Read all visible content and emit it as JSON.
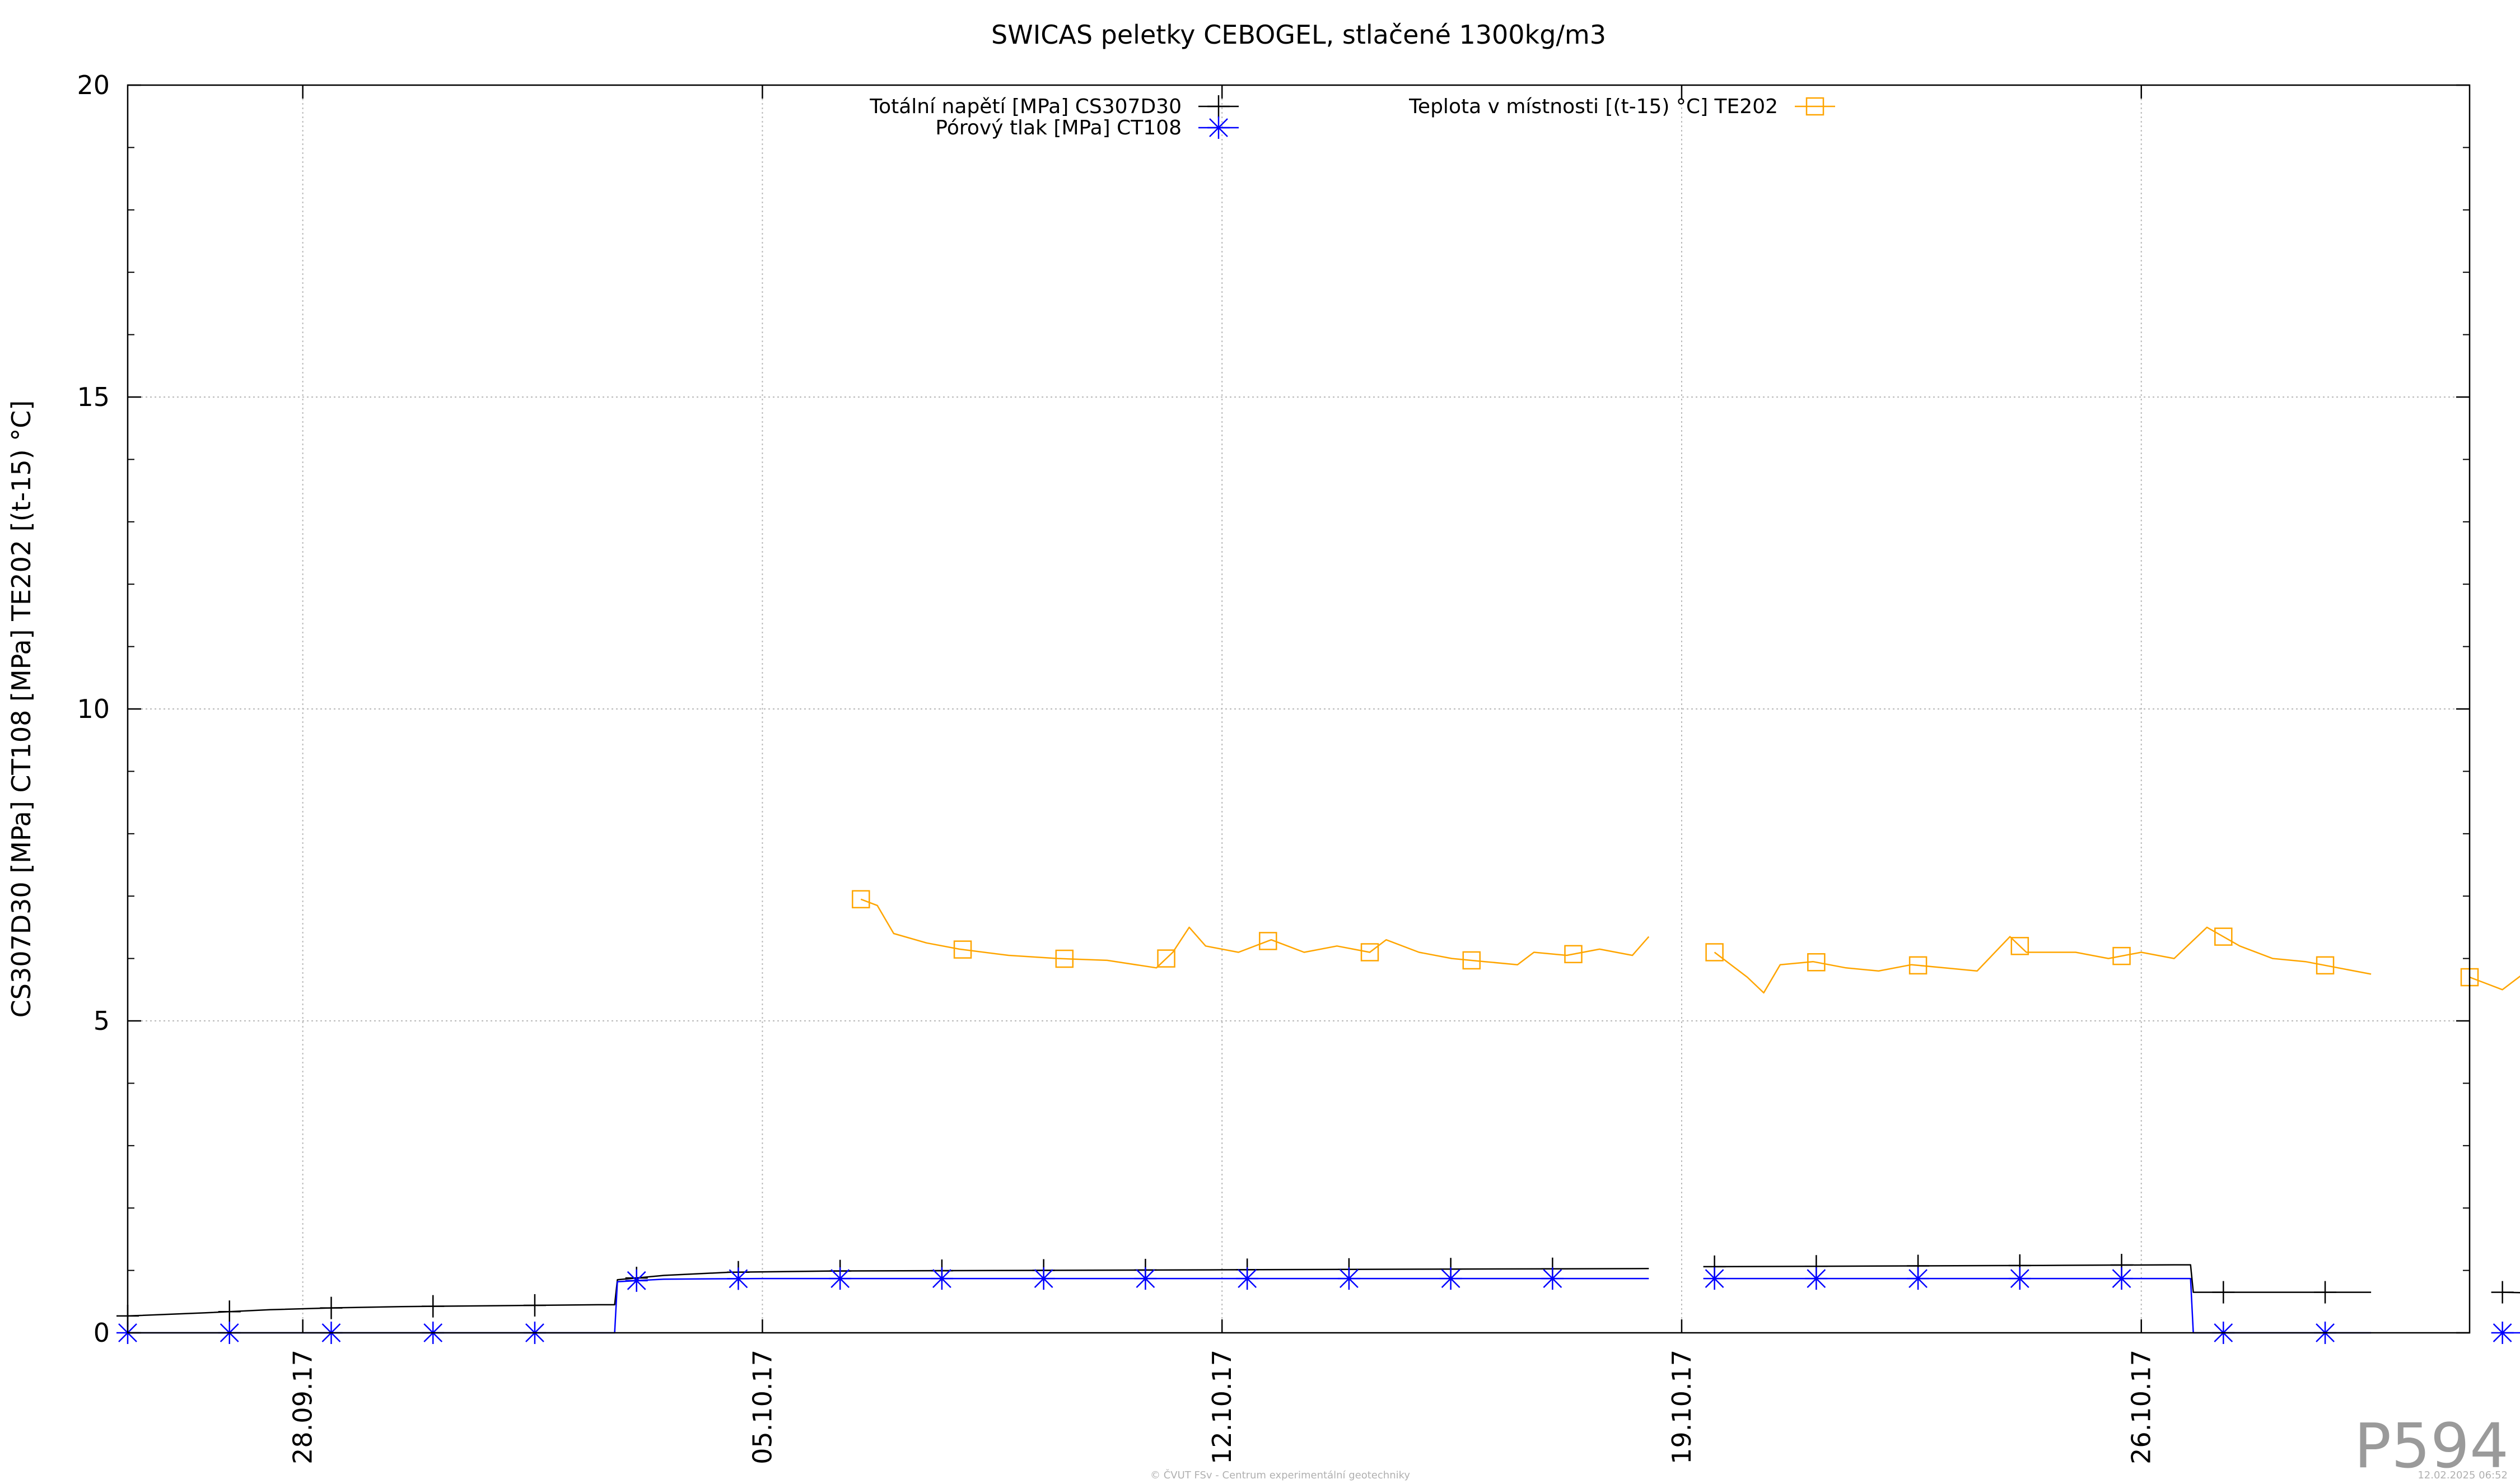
{
  "chart_data": {
    "type": "line",
    "title": "SWICAS peletky CEBOGEL, stlačené 1300kg/m3",
    "xlabel": "",
    "ylabel": "CS307D30 [MPa] CT108 [MPa] TE202 [(t-15) °C]",
    "ylim": [
      0,
      20
    ],
    "xlim": [
      "2017-09-25 08:00",
      "2017-10-31 00:00"
    ],
    "y_ticks": [
      "0",
      "5",
      "10",
      "15",
      "20"
    ],
    "x_ticks": [
      {
        "date": "2017-09-28",
        "label": "28.09.17"
      },
      {
        "date": "2017-10-05",
        "label": "05.10.17"
      },
      {
        "date": "2017-10-12",
        "label": "12.10.17"
      },
      {
        "date": "2017-10-19",
        "label": "19.10.17"
      },
      {
        "date": "2017-10-26",
        "label": "26.10.17"
      }
    ],
    "grid": true,
    "legend": "top",
    "series": [
      {
        "name": "Totální napětí [MPa] CS307D30",
        "color": "#000000",
        "marker": "plus",
        "segments": [
          [
            [
              "2017-09-25 08:00",
              0.27
            ],
            [
              "2017-09-26 12:00",
              0.32
            ],
            [
              "2017-09-27 12:00",
              0.37
            ],
            [
              "2017-09-28 12:00",
              0.4
            ],
            [
              "2017-09-29 12:00",
              0.42
            ],
            [
              "2017-09-30 12:00",
              0.43
            ],
            [
              "2017-10-01 12:00",
              0.44
            ],
            [
              "2017-10-02 12:00",
              0.45
            ],
            [
              "2017-10-02 18:00",
              0.45
            ],
            [
              "2017-10-02 19:00",
              0.85
            ],
            [
              "2017-10-03 12:00",
              0.92
            ],
            [
              "2017-10-04 12:00",
              0.97
            ],
            [
              "2017-10-06 00:00",
              0.99
            ],
            [
              "2017-10-09 00:00",
              1.0
            ],
            [
              "2017-10-12 00:00",
              1.01
            ],
            [
              "2017-10-15 00:00",
              1.02
            ],
            [
              "2017-10-18 12:00",
              1.03
            ]
          ],
          [
            [
              "2017-10-19 12:00",
              1.06
            ],
            [
              "2017-10-22 00:00",
              1.07
            ],
            [
              "2017-10-24 12:00",
              1.08
            ],
            [
              "2017-10-26 12:00",
              1.09
            ],
            [
              "2017-10-26 18:00",
              1.09
            ],
            [
              "2017-10-26 19:00",
              0.65
            ],
            [
              "2017-10-29 12:00",
              0.65
            ]
          ],
          [
            [
              "2017-10-31 12:00",
              0.65
            ],
            [
              "2017-11-01 00:00",
              0.64
            ]
          ]
        ]
      },
      {
        "name": "Pórový tlak [MPa] CT108",
        "color": "#0000ff",
        "marker": "star",
        "segments": [
          [
            [
              "2017-09-25 08:00",
              0.0
            ],
            [
              "2017-10-02 18:00",
              0.0
            ],
            [
              "2017-10-02 19:00",
              0.82
            ],
            [
              "2017-10-03 12:00",
              0.86
            ],
            [
              "2017-10-05 00:00",
              0.87
            ],
            [
              "2017-10-18 12:00",
              0.87
            ]
          ],
          [
            [
              "2017-10-19 12:00",
              0.87
            ],
            [
              "2017-10-26 18:00",
              0.87
            ],
            [
              "2017-10-26 19:00",
              0.0
            ],
            [
              "2017-10-29 12:00",
              0.0
            ]
          ],
          [
            [
              "2017-10-31 12:00",
              0.0
            ],
            [
              "2017-11-01 00:00",
              0.0
            ]
          ]
        ]
      },
      {
        "name": "Teplota v místnosti [(t-15) °C] TE202",
        "color": "#ffa500",
        "marker": "square",
        "segments": [
          [
            [
              "2017-10-06 12:00",
              6.95
            ],
            [
              "2017-10-06 18:00",
              6.85
            ],
            [
              "2017-10-07 00:00",
              6.4
            ],
            [
              "2017-10-07 12:00",
              6.25
            ],
            [
              "2017-10-08 00:00",
              6.15
            ],
            [
              "2017-10-08 18:00",
              6.05
            ],
            [
              "2017-10-09 12:00",
              6.0
            ],
            [
              "2017-10-10 06:00",
              5.97
            ],
            [
              "2017-10-11 00:00",
              5.85
            ],
            [
              "2017-10-11 06:00",
              6.1
            ],
            [
              "2017-10-11 12:00",
              6.5
            ],
            [
              "2017-10-11 18:00",
              6.2
            ],
            [
              "2017-10-12 06:00",
              6.1
            ],
            [
              "2017-10-12 18:00",
              6.3
            ],
            [
              "2017-10-13 06:00",
              6.1
            ],
            [
              "2017-10-13 18:00",
              6.2
            ],
            [
              "2017-10-14 06:00",
              6.1
            ],
            [
              "2017-10-14 12:00",
              6.3
            ],
            [
              "2017-10-15 00:00",
              6.1
            ],
            [
              "2017-10-15 12:00",
              6.0
            ],
            [
              "2017-10-16 00:00",
              5.95
            ],
            [
              "2017-10-16 12:00",
              5.9
            ],
            [
              "2017-10-16 18:00",
              6.1
            ],
            [
              "2017-10-17 06:00",
              6.05
            ],
            [
              "2017-10-17 18:00",
              6.15
            ],
            [
              "2017-10-18 06:00",
              6.05
            ],
            [
              "2017-10-18 12:00",
              6.35
            ]
          ],
          [
            [
              "2017-10-19 12:00",
              6.1
            ],
            [
              "2017-10-19 18:00",
              5.9
            ],
            [
              "2017-10-20 00:00",
              5.7
            ],
            [
              "2017-10-20 06:00",
              5.45
            ],
            [
              "2017-10-20 12:00",
              5.9
            ],
            [
              "2017-10-21 00:00",
              5.95
            ],
            [
              "2017-10-21 12:00",
              5.85
            ],
            [
              "2017-10-22 00:00",
              5.8
            ],
            [
              "2017-10-22 12:00",
              5.9
            ],
            [
              "2017-10-23 00:00",
              5.85
            ],
            [
              "2017-10-23 12:00",
              5.8
            ],
            [
              "2017-10-24 00:00",
              6.35
            ],
            [
              "2017-10-24 06:00",
              6.1
            ],
            [
              "2017-10-25 00:00",
              6.1
            ],
            [
              "2017-10-25 12:00",
              6.0
            ],
            [
              "2017-10-26 00:00",
              6.1
            ],
            [
              "2017-10-26 12:00",
              6.0
            ],
            [
              "2017-10-27 00:00",
              6.5
            ],
            [
              "2017-10-27 12:00",
              6.2
            ],
            [
              "2017-10-28 00:00",
              6.0
            ],
            [
              "2017-10-28 12:00",
              5.95
            ],
            [
              "2017-10-29 12:00",
              5.75
            ]
          ],
          [
            [
              "2017-10-31 00:00",
              5.7
            ],
            [
              "2017-10-31 12:00",
              5.5
            ],
            [
              "2017-11-01 00:00",
              5.9
            ]
          ]
        ]
      }
    ]
  },
  "watermark": "P594",
  "footer_credit": "© ČVUT FSv - Centrum experimentální geotechniky",
  "footer_timestamp": "12.02.2025 06:52"
}
